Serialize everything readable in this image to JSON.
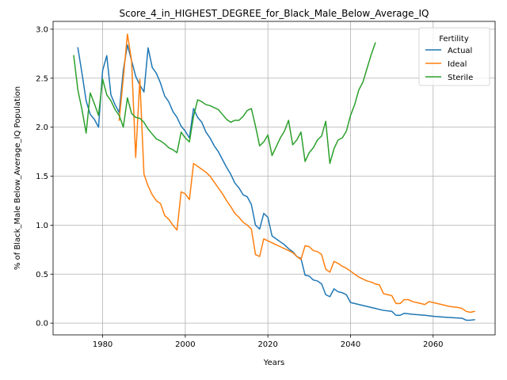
{
  "chart_data": {
    "type": "line",
    "title": "Score_4_in_HIGHEST_DEGREE_for_Black_Male_Below_Average_IQ",
    "xlabel": "Years",
    "ylabel": "% of Black_Male Below_Average_IQ Population",
    "xlim": [
      1968,
      2075
    ],
    "ylim": [
      -0.12,
      3.08
    ],
    "x_ticks": [
      1980,
      2000,
      2020,
      2040,
      2060
    ],
    "y_ticks": [
      "0.0",
      "0.5",
      "1.0",
      "1.5",
      "2.0",
      "2.5",
      "3.0"
    ],
    "grid": true,
    "legend_title": "Fertility",
    "legend_position": "top-right",
    "series": [
      {
        "name": "Actual",
        "color": "#1f77b4",
        "points": [
          [
            1974,
            2.81
          ],
          [
            1975,
            2.55
          ],
          [
            1976,
            2.27
          ],
          [
            1977,
            2.13
          ],
          [
            1978,
            2.08
          ],
          [
            1979,
            2.0
          ],
          [
            1980,
            2.58
          ],
          [
            1981,
            2.73
          ],
          [
            1982,
            2.33
          ],
          [
            1983,
            2.23
          ],
          [
            1984,
            2.15
          ],
          [
            1985,
            2.58
          ],
          [
            1986,
            2.84
          ],
          [
            1987,
            2.68
          ],
          [
            1988,
            2.52
          ],
          [
            1989,
            2.43
          ],
          [
            1990,
            2.36
          ],
          [
            1991,
            2.81
          ],
          [
            1992,
            2.61
          ],
          [
            1993,
            2.55
          ],
          [
            1994,
            2.45
          ],
          [
            1995,
            2.32
          ],
          [
            1996,
            2.26
          ],
          [
            1997,
            2.16
          ],
          [
            1998,
            2.1
          ],
          [
            1999,
            2.01
          ],
          [
            2000,
            1.96
          ],
          [
            2001,
            1.89
          ],
          [
            2002,
            2.19
          ],
          [
            2003,
            2.1
          ],
          [
            2004,
            2.05
          ],
          [
            2005,
            1.95
          ],
          [
            2006,
            1.89
          ],
          [
            2007,
            1.81
          ],
          [
            2008,
            1.75
          ],
          [
            2009,
            1.67
          ],
          [
            2010,
            1.59
          ],
          [
            2011,
            1.52
          ],
          [
            2012,
            1.43
          ],
          [
            2013,
            1.38
          ],
          [
            2014,
            1.31
          ],
          [
            2015,
            1.29
          ],
          [
            2016,
            1.21
          ],
          [
            2017,
            1.0
          ],
          [
            2018,
            0.96
          ],
          [
            2019,
            1.12
          ],
          [
            2020,
            1.08
          ],
          [
            2021,
            0.89
          ],
          [
            2022,
            0.86
          ],
          [
            2023,
            0.83
          ],
          [
            2024,
            0.8
          ],
          [
            2025,
            0.76
          ],
          [
            2026,
            0.73
          ],
          [
            2027,
            0.68
          ],
          [
            2028,
            0.66
          ],
          [
            2029,
            0.49
          ],
          [
            2030,
            0.48
          ],
          [
            2031,
            0.44
          ],
          [
            2032,
            0.43
          ],
          [
            2033,
            0.4
          ],
          [
            2034,
            0.29
          ],
          [
            2035,
            0.27
          ],
          [
            2036,
            0.35
          ],
          [
            2037,
            0.32
          ],
          [
            2038,
            0.31
          ],
          [
            2039,
            0.29
          ],
          [
            2040,
            0.21
          ],
          [
            2042,
            0.19
          ],
          [
            2044,
            0.17
          ],
          [
            2046,
            0.15
          ],
          [
            2048,
            0.13
          ],
          [
            2050,
            0.12
          ],
          [
            2051,
            0.08
          ],
          [
            2052,
            0.08
          ],
          [
            2053,
            0.1
          ],
          [
            2055,
            0.09
          ],
          [
            2058,
            0.08
          ],
          [
            2060,
            0.07
          ],
          [
            2063,
            0.06
          ],
          [
            2067,
            0.05
          ],
          [
            2068,
            0.03
          ],
          [
            2069,
            0.03
          ],
          [
            2070,
            0.035
          ]
        ]
      },
      {
        "name": "Ideal",
        "color": "#ff7f0e",
        "points": [
          [
            1984,
            2.07
          ],
          [
            1985,
            2.5
          ],
          [
            1986,
            2.95
          ],
          [
            1987,
            2.68
          ],
          [
            1988,
            1.69
          ],
          [
            1989,
            2.49
          ],
          [
            1990,
            1.52
          ],
          [
            1991,
            1.4
          ],
          [
            1992,
            1.31
          ],
          [
            1993,
            1.25
          ],
          [
            1994,
            1.22
          ],
          [
            1995,
            1.1
          ],
          [
            1996,
            1.06
          ],
          [
            1997,
            1.0
          ],
          [
            1998,
            0.95
          ],
          [
            1999,
            1.34
          ],
          [
            2000,
            1.32
          ],
          [
            2001,
            1.26
          ],
          [
            2002,
            1.63
          ],
          [
            2003,
            1.6
          ],
          [
            2004,
            1.57
          ],
          [
            2005,
            1.54
          ],
          [
            2006,
            1.5
          ],
          [
            2007,
            1.44
          ],
          [
            2008,
            1.38
          ],
          [
            2009,
            1.32
          ],
          [
            2010,
            1.25
          ],
          [
            2011,
            1.19
          ],
          [
            2012,
            1.12
          ],
          [
            2013,
            1.08
          ],
          [
            2014,
            1.03
          ],
          [
            2015,
            1.0
          ],
          [
            2016,
            0.96
          ],
          [
            2017,
            0.7
          ],
          [
            2018,
            0.68
          ],
          [
            2019,
            0.86
          ],
          [
            2020,
            0.84
          ],
          [
            2021,
            0.82
          ],
          [
            2022,
            0.8
          ],
          [
            2023,
            0.78
          ],
          [
            2024,
            0.76
          ],
          [
            2025,
            0.74
          ],
          [
            2026,
            0.72
          ],
          [
            2027,
            0.68
          ],
          [
            2028,
            0.65
          ],
          [
            2029,
            0.79
          ],
          [
            2030,
            0.78
          ],
          [
            2031,
            0.74
          ],
          [
            2032,
            0.73
          ],
          [
            2033,
            0.7
          ],
          [
            2034,
            0.55
          ],
          [
            2035,
            0.52
          ],
          [
            2036,
            0.63
          ],
          [
            2037,
            0.61
          ],
          [
            2038,
            0.58
          ],
          [
            2039,
            0.56
          ],
          [
            2040,
            0.53
          ],
          [
            2041,
            0.5
          ],
          [
            2042,
            0.47
          ],
          [
            2043,
            0.45
          ],
          [
            2044,
            0.43
          ],
          [
            2045,
            0.42
          ],
          [
            2046,
            0.4
          ],
          [
            2047,
            0.39
          ],
          [
            2048,
            0.3
          ],
          [
            2049,
            0.29
          ],
          [
            2050,
            0.28
          ],
          [
            2051,
            0.2
          ],
          [
            2052,
            0.2
          ],
          [
            2053,
            0.24
          ],
          [
            2054,
            0.24
          ],
          [
            2055,
            0.22
          ],
          [
            2057,
            0.2
          ],
          [
            2058,
            0.19
          ],
          [
            2059,
            0.22
          ],
          [
            2060,
            0.21
          ],
          [
            2062,
            0.19
          ],
          [
            2064,
            0.17
          ],
          [
            2066,
            0.16
          ],
          [
            2067,
            0.15
          ],
          [
            2068,
            0.12
          ],
          [
            2069,
            0.11
          ],
          [
            2070,
            0.12
          ]
        ]
      },
      {
        "name": "Sterile",
        "color": "#2ca02c",
        "points": [
          [
            1973,
            2.73
          ],
          [
            1974,
            2.38
          ],
          [
            1975,
            2.18
          ],
          [
            1976,
            1.94
          ],
          [
            1977,
            2.35
          ],
          [
            1978,
            2.24
          ],
          [
            1979,
            2.12
          ],
          [
            1980,
            2.49
          ],
          [
            1981,
            2.33
          ],
          [
            1982,
            2.27
          ],
          [
            1983,
            2.18
          ],
          [
            1984,
            2.12
          ],
          [
            1985,
            2.0
          ],
          [
            1986,
            2.3
          ],
          [
            1987,
            2.14
          ],
          [
            1988,
            2.1
          ],
          [
            1989,
            2.09
          ],
          [
            1990,
            2.05
          ],
          [
            1991,
            1.98
          ],
          [
            1992,
            1.93
          ],
          [
            1993,
            1.88
          ],
          [
            1994,
            1.86
          ],
          [
            1995,
            1.83
          ],
          [
            1996,
            1.79
          ],
          [
            1997,
            1.77
          ],
          [
            1998,
            1.74
          ],
          [
            1999,
            1.95
          ],
          [
            2000,
            1.89
          ],
          [
            2001,
            1.85
          ],
          [
            2002,
            2.11
          ],
          [
            2003,
            2.28
          ],
          [
            2004,
            2.26
          ],
          [
            2005,
            2.23
          ],
          [
            2006,
            2.22
          ],
          [
            2007,
            2.2
          ],
          [
            2008,
            2.18
          ],
          [
            2009,
            2.13
          ],
          [
            2010,
            2.08
          ],
          [
            2011,
            2.05
          ],
          [
            2012,
            2.07
          ],
          [
            2013,
            2.07
          ],
          [
            2014,
            2.11
          ],
          [
            2015,
            2.17
          ],
          [
            2016,
            2.19
          ],
          [
            2017,
            2.01
          ],
          [
            2018,
            1.81
          ],
          [
            2019,
            1.85
          ],
          [
            2020,
            1.92
          ],
          [
            2021,
            1.71
          ],
          [
            2022,
            1.8
          ],
          [
            2023,
            1.89
          ],
          [
            2024,
            1.96
          ],
          [
            2025,
            2.07
          ],
          [
            2026,
            1.82
          ],
          [
            2027,
            1.87
          ],
          [
            2028,
            1.95
          ],
          [
            2029,
            1.65
          ],
          [
            2030,
            1.74
          ],
          [
            2031,
            1.79
          ],
          [
            2032,
            1.87
          ],
          [
            2033,
            1.91
          ],
          [
            2034,
            2.06
          ],
          [
            2035,
            1.63
          ],
          [
            2036,
            1.78
          ],
          [
            2037,
            1.87
          ],
          [
            2038,
            1.89
          ],
          [
            2039,
            1.96
          ],
          [
            2040,
            2.12
          ],
          [
            2041,
            2.23
          ],
          [
            2042,
            2.38
          ],
          [
            2043,
            2.46
          ],
          [
            2044,
            2.6
          ],
          [
            2045,
            2.74
          ],
          [
            2046,
            2.86
          ]
        ]
      }
    ]
  }
}
